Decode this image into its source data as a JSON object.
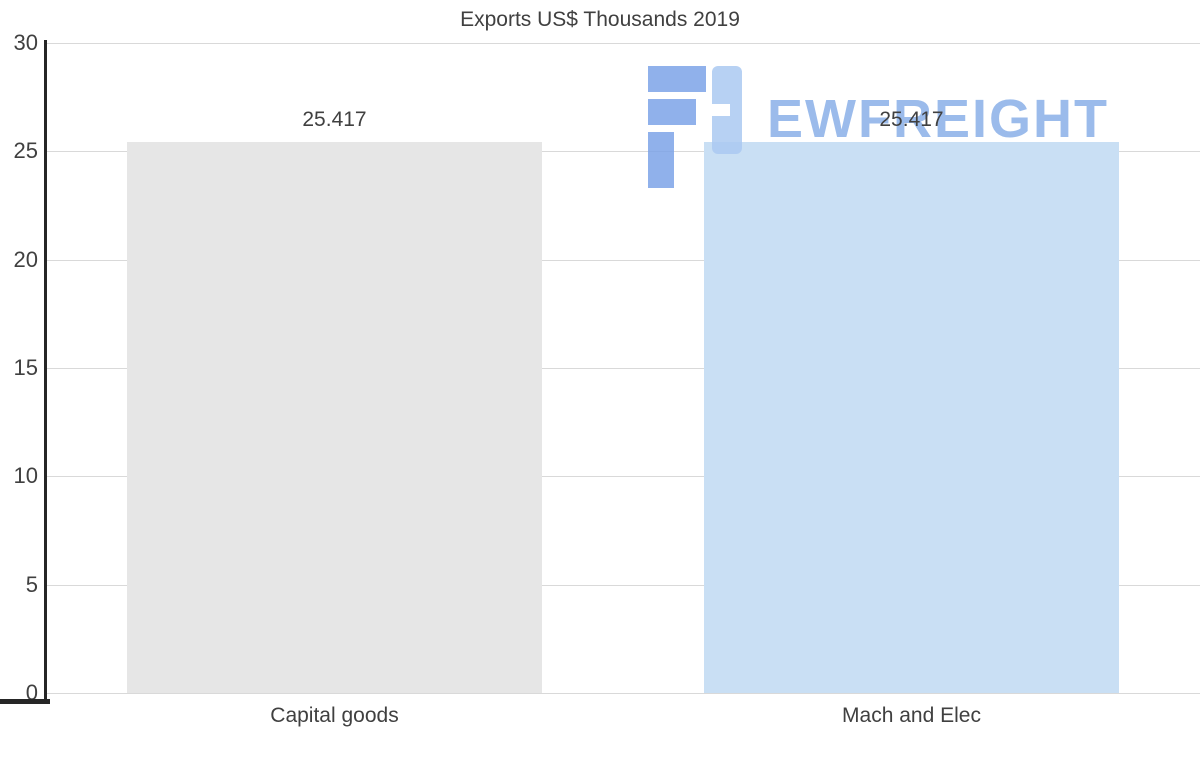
{
  "chart_data": {
    "type": "bar",
    "title": "Exports US$ Thousands 2019",
    "categories": [
      "Capital goods",
      "Mach and Elec"
    ],
    "values": [
      25.417,
      25.417
    ],
    "value_labels": [
      "25.417",
      "25.417"
    ],
    "bar_colors": [
      "#e6e6e6",
      "#c9dff4"
    ],
    "ylim": [
      0,
      30
    ],
    "yticks": [
      0,
      5,
      10,
      15,
      20,
      25,
      30
    ],
    "grid": true,
    "legend": false,
    "xlabel": "",
    "ylabel": ""
  },
  "watermark": {
    "text": "EWFREIGHT",
    "text_color": "#8ab0e8",
    "icon_color_dark": "#7da4e8",
    "icon_color_light": "#abc9f2"
  },
  "colors": {
    "axis": "#262626",
    "gridline": "#d9d9d9",
    "text": "#404040",
    "background": "#ffffff"
  }
}
